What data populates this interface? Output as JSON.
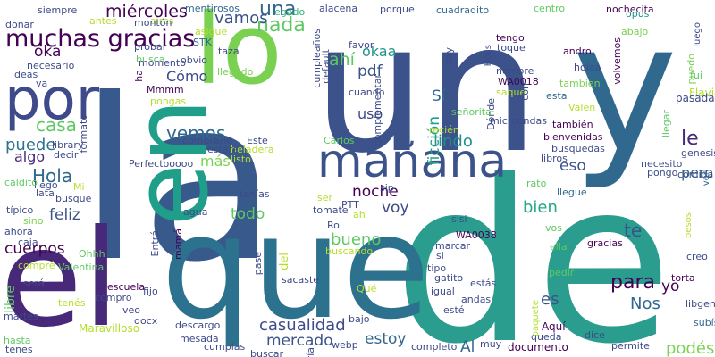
{
  "words": [
    {
      "t": "la",
      "c": "#38598c"
    },
    {
      "t": "de",
      "c": "#2a9d8f"
    },
    {
      "t": "un",
      "c": "#3b528b"
    },
    {
      "t": "y",
      "c": "#31688e"
    },
    {
      "t": "el",
      "c": "#482878"
    },
    {
      "t": "que",
      "c": "#2c728e"
    },
    {
      "t": "por",
      "c": "#3e4a89"
    },
    {
      "t": "lo",
      "c": "#7ad151"
    },
    {
      "t": "en",
      "c": "#1f9e89"
    },
    {
      "t": "mañana",
      "c": "#3b528b"
    },
    {
      "t": "muchas gracias",
      "c": "#440154"
    },
    {
      "t": "una",
      "c": "#31688e"
    },
    {
      "t": "nada",
      "c": "#5ec962"
    },
    {
      "t": "vamos",
      "c": "#3b528b"
    },
    {
      "t": "miércoles",
      "c": "#440154"
    },
    {
      "t": "okaa",
      "c": "#21918c"
    },
    {
      "t": "ahí",
      "c": "#5ec962"
    },
    {
      "t": "pdf",
      "c": "#3b528b"
    },
    {
      "t": "uso",
      "c": "#3e4a89"
    },
    {
      "t": "ficción",
      "c": "#1f9e89"
    },
    {
      "t": "Sí",
      "c": "#31688e"
    },
    {
      "t": "para",
      "c": "#440154"
    },
    {
      "t": "te",
      "c": "#3b528b"
    },
    {
      "t": "le",
      "c": "#482878"
    },
    {
      "t": "pero",
      "c": "#31688e"
    },
    {
      "t": "bien",
      "c": "#22a884"
    },
    {
      "t": "eso",
      "c": "#3b528b"
    },
    {
      "t": "voy",
      "c": "#3e4a89"
    },
    {
      "t": "noche",
      "c": "#440154"
    },
    {
      "t": "lindo",
      "c": "#21918c"
    },
    {
      "t": "Hola",
      "c": "#31688e"
    },
    {
      "t": "algo",
      "c": "#482878"
    },
    {
      "t": "puede",
      "c": "#2c728e"
    },
    {
      "t": "casa",
      "c": "#5ec962"
    },
    {
      "t": "vemos",
      "c": "#31688e"
    },
    {
      "t": "más",
      "c": "#7ad151"
    },
    {
      "t": "feliz",
      "c": "#3b528b"
    },
    {
      "t": "todo",
      "c": "#5ec962"
    },
    {
      "t": "cuerpos",
      "c": "#440154"
    },
    {
      "t": "bueno",
      "c": "#5ec962"
    },
    {
      "t": "casualidad",
      "c": "#3e4a89"
    },
    {
      "t": "mercado",
      "c": "#3b528b"
    },
    {
      "t": "estoy",
      "c": "#31688e"
    },
    {
      "t": "Nos",
      "c": "#31688e"
    },
    {
      "t": "es",
      "c": "#3b528b"
    },
    {
      "t": "yo",
      "c": "#440154"
    },
    {
      "t": "Al",
      "c": "#31688e"
    },
    {
      "t": "podés",
      "c": "#7ad151"
    },
    {
      "t": "oka",
      "c": "#440154"
    },
    {
      "t": "Cómo",
      "c": "#3e4a89"
    },
    {
      "t": "del",
      "c": "#b5de2b"
    },
    {
      "t": "libre",
      "c": "#5ec962"
    },
    {
      "t": "donar",
      "c": "#3e4a89"
    },
    {
      "t": "siempre",
      "c": "#3e4a89"
    },
    {
      "t": "antes",
      "c": "#b5de2b"
    },
    {
      "t": "aires",
      "c": "#b5de2b"
    },
    {
      "t": "montón",
      "c": "#3e4a89"
    },
    {
      "t": "mentirosos",
      "c": "#31688e"
    },
    {
      "t": "legado",
      "c": "#35b779"
    },
    {
      "t": "alacena",
      "c": "#3e4a89"
    },
    {
      "t": "porque",
      "c": "#3e4a89"
    },
    {
      "t": "cuadradito",
      "c": "#31688e"
    },
    {
      "t": "centro",
      "c": "#5ec962"
    },
    {
      "t": "nochecita",
      "c": "#440154"
    },
    {
      "t": "opus",
      "c": "#21918c"
    },
    {
      "t": "abajo",
      "c": "#7ad151"
    },
    {
      "t": "luego",
      "c": "#3e4a89"
    },
    {
      "t": "andro",
      "c": "#440154"
    },
    {
      "t": "tengo",
      "c": "#440154"
    },
    {
      "t": "toque",
      "c": "#3e4a89"
    },
    {
      "t": "Holis",
      "c": "#3e4a89"
    },
    {
      "t": "WA0018",
      "c": "#440154"
    },
    {
      "t": "nombre",
      "c": "#3e4a89"
    },
    {
      "t": "holaa",
      "c": "#3e4a89"
    },
    {
      "t": "tambien",
      "c": "#7ad151"
    },
    {
      "t": "esta",
      "c": "#31688e"
    },
    {
      "t": "volvemos",
      "c": "#440154"
    },
    {
      "t": "fui",
      "c": "#5ec962"
    },
    {
      "t": "Flavia",
      "c": "#b5de2b"
    },
    {
      "t": "pasada",
      "c": "#3e4a89"
    },
    {
      "t": "puedo",
      "c": "#7ad151"
    },
    {
      "t": "Valen",
      "c": "#b5de2b"
    },
    {
      "t": "también",
      "c": "#440154"
    },
    {
      "t": "llegar",
      "c": "#5ec962"
    },
    {
      "t": "genesis",
      "c": "#3e4a89"
    },
    {
      "t": "necesito",
      "c": "#3b528b"
    },
    {
      "t": "pongo",
      "c": "#3e4a89"
    },
    {
      "t": "comida",
      "c": "#3e4a89"
    },
    {
      "t": "ver",
      "c": "#31688e"
    },
    {
      "t": "bienvenidas",
      "c": "#440154"
    },
    {
      "t": "busquedas",
      "c": "#3e4a89"
    },
    {
      "t": "libros",
      "c": "#3e4a89"
    },
    {
      "t": "rato",
      "c": "#5ec962"
    },
    {
      "t": "llegue",
      "c": "#31688e"
    },
    {
      "t": "besos",
      "c": "#b5de2b"
    },
    {
      "t": "vos",
      "c": "#5ec962"
    },
    {
      "t": "gracias",
      "c": "#440154"
    },
    {
      "t": "ella",
      "c": "#5ec962"
    },
    {
      "t": "creo",
      "c": "#3e4a89"
    },
    {
      "t": "torta",
      "c": "#440154"
    },
    {
      "t": "pedir",
      "c": "#5ec962"
    },
    {
      "t": "libgen",
      "c": "#3e4a89"
    },
    {
      "t": "subís",
      "c": "#31688e"
    },
    {
      "t": "Aquí",
      "c": "#440154"
    },
    {
      "t": "dice",
      "c": "#3e4a89"
    },
    {
      "t": "queda",
      "c": "#3e4a89"
    },
    {
      "t": "permite",
      "c": "#3e4a89"
    },
    {
      "t": "documento",
      "c": "#440154"
    },
    {
      "t": "muy",
      "c": "#3e4a89"
    },
    {
      "t": "completo",
      "c": "#3e4a89"
    },
    {
      "t": "webp",
      "c": "#3e4a89"
    },
    {
      "t": "sería",
      "c": "#3e4a89"
    },
    {
      "t": "buscar",
      "c": "#3e4a89"
    },
    {
      "t": "cumplas",
      "c": "#3e4a89"
    },
    {
      "t": "mesada",
      "c": "#3e4a89"
    },
    {
      "t": "descargo",
      "c": "#3e4a89"
    },
    {
      "t": "Maravilloso",
      "c": "#b5de2b"
    },
    {
      "t": "docx",
      "c": "#3e4a89"
    },
    {
      "t": "veo",
      "c": "#3e4a89"
    },
    {
      "t": "compro",
      "c": "#3e4a89"
    },
    {
      "t": "tenés",
      "c": "#b5de2b"
    },
    {
      "t": "hasta",
      "c": "#5ec962"
    },
    {
      "t": "martes",
      "c": "#3e4a89"
    },
    {
      "t": "tenes",
      "c": "#3e4a89"
    },
    {
      "t": "será",
      "c": "#3e4a89"
    },
    {
      "t": "escuela",
      "c": "#440154"
    },
    {
      "t": "fijo",
      "c": "#3e4a89"
    },
    {
      "t": "Valentina",
      "c": "#5ec962"
    },
    {
      "t": "compré",
      "c": "#b5de2b"
    },
    {
      "t": "Ohhh",
      "c": "#5ec962"
    },
    {
      "t": "caja",
      "c": "#3e4a89"
    },
    {
      "t": "ahora",
      "c": "#3e4a89"
    },
    {
      "t": "sino",
      "c": "#7ad151"
    },
    {
      "t": "típico",
      "c": "#3e4a89"
    },
    {
      "t": "busque",
      "c": "#3e4a89"
    },
    {
      "t": "lata",
      "c": "#3e4a89"
    },
    {
      "t": "llego",
      "c": "#3e4a89"
    },
    {
      "t": "Mi",
      "c": "#b5de2b"
    },
    {
      "t": "caldito",
      "c": "#5ec962"
    },
    {
      "t": "library",
      "c": "#3e4a89"
    },
    {
      "t": "decir",
      "c": "#3e4a89"
    },
    {
      "t": "formato",
      "c": "#3e4a89"
    },
    {
      "t": "ideas",
      "c": "#3e4a89"
    },
    {
      "t": "necesario",
      "c": "#3e4a89"
    },
    {
      "t": "va",
      "c": "#3e4a89"
    },
    {
      "t": "momento",
      "c": "#3e4a89"
    },
    {
      "t": "probar",
      "c": "#3e4a89"
    },
    {
      "t": "busca",
      "c": "#5ec962"
    },
    {
      "t": "Mmmm",
      "c": "#440154"
    },
    {
      "t": "pongas",
      "c": "#b5de2b"
    },
    {
      "t": "ha",
      "c": "#440154"
    },
    {
      "t": "obvio",
      "c": "#3e4a89"
    },
    {
      "t": "asique",
      "c": "#b5de2b"
    },
    {
      "t": "STK",
      "c": "#31688e"
    },
    {
      "t": "taza",
      "c": "#3e4a89"
    },
    {
      "t": "llegado",
      "c": "#7ad151"
    },
    {
      "t": "cumpleaños",
      "c": "#3e4a89"
    },
    {
      "t": "default",
      "c": "#3e4a89"
    },
    {
      "t": "favor",
      "c": "#3e4a89"
    },
    {
      "t": "complementar",
      "c": "#3e4a89"
    },
    {
      "t": "hay",
      "c": "#3e4a89"
    },
    {
      "t": "cuando",
      "c": "#3e4a89"
    },
    {
      "t": "saque",
      "c": "#b5de2b"
    },
    {
      "t": "Dónde",
      "c": "#3e4a89"
    },
    {
      "t": "recién",
      "c": "#b5de2b"
    },
    {
      "t": "microondas",
      "c": "#3e4a89"
    },
    {
      "t": "con",
      "c": "#3e4a89"
    },
    {
      "t": "señorita",
      "c": "#5ec962"
    },
    {
      "t": "Carlos",
      "c": "#5ec962"
    },
    {
      "t": "Este",
      "c": "#3e4a89"
    },
    {
      "t": "heladera",
      "c": "#b5de2b"
    },
    {
      "t": "listo",
      "c": "#b5de2b"
    },
    {
      "t": "estaré",
      "c": "#3e4a89"
    },
    {
      "t": "comprarle",
      "c": "#3e4a89"
    },
    {
      "t": "Perfectooooo",
      "c": "#3e4a89"
    },
    {
      "t": "sip",
      "c": "#3e4a89"
    },
    {
      "t": "ser",
      "c": "#b5de2b"
    },
    {
      "t": "tenías",
      "c": "#3e4a89"
    },
    {
      "t": "Entrá",
      "c": "#3e4a89"
    },
    {
      "t": "PTT",
      "c": "#3e4a89"
    },
    {
      "t": "ah",
      "c": "#b5de2b"
    },
    {
      "t": "tomate",
      "c": "#3e4a89"
    },
    {
      "t": "Ro",
      "c": "#3e4a89"
    },
    {
      "t": "agua",
      "c": "#3e4a89"
    },
    {
      "t": "sisi",
      "c": "#3e4a89"
    },
    {
      "t": "WA0038",
      "c": "#440154"
    },
    {
      "t": "marcar",
      "c": "#3e4a89"
    },
    {
      "t": "si",
      "c": "#3e4a89"
    },
    {
      "t": "buscando",
      "c": "#b5de2b"
    },
    {
      "t": "mamá",
      "c": "#440154"
    },
    {
      "t": "pase",
      "c": "#3e4a89"
    },
    {
      "t": "sacaste",
      "c": "#3e4a89"
    },
    {
      "t": "tipo",
      "c": "#3e4a89"
    },
    {
      "t": "gatito",
      "c": "#3e4a89"
    },
    {
      "t": "Qué",
      "c": "#b5de2b"
    },
    {
      "t": "estás",
      "c": "#3e4a89"
    },
    {
      "t": "igual",
      "c": "#3e4a89"
    },
    {
      "t": "andas",
      "c": "#3e4a89"
    },
    {
      "t": "esté",
      "c": "#3e4a89"
    },
    {
      "t": "paquete",
      "c": "#b5de2b"
    },
    {
      "t": "bajo",
      "c": "#3e4a89"
    }
  ]
}
